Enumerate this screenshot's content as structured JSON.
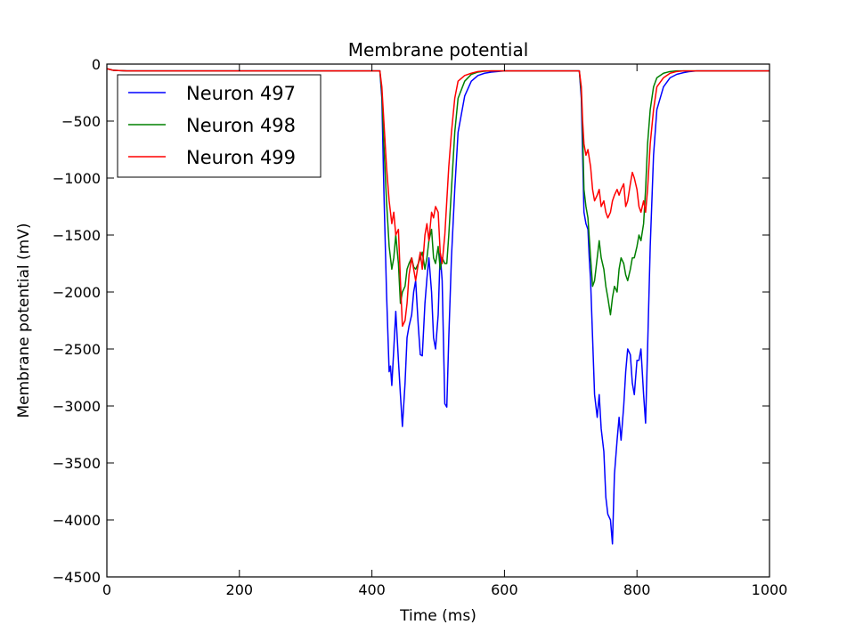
{
  "chart_data": {
    "type": "line",
    "title": "Membrane potential",
    "xlabel": "Time (ms)",
    "ylabel": "Membrane potential (mV)",
    "xlim": [
      0,
      1000
    ],
    "ylim": [
      -4500,
      0
    ],
    "xticks": [
      0,
      200,
      400,
      600,
      800,
      1000
    ],
    "yticks": [
      0,
      -500,
      -1000,
      -1500,
      -2000,
      -2500,
      -3000,
      -3500,
      -4000,
      -4500
    ],
    "xtick_labels": [
      "0",
      "200",
      "400",
      "600",
      "800",
      "1000"
    ],
    "ytick_labels": [
      "0",
      "−500",
      "−1000",
      "−1500",
      "−2000",
      "−2500",
      "−3000",
      "−3500",
      "−4000",
      "−4500"
    ],
    "grid": false,
    "legend_position": "top-left",
    "series": [
      {
        "name": "Neuron 497",
        "color": "#0000ff",
        "x": [
          0,
          10,
          30,
          412,
          415,
          418,
          422,
          426,
          428,
          430,
          433,
          436,
          440,
          443,
          446,
          450,
          453,
          456,
          460,
          463,
          466,
          470,
          473,
          476,
          480,
          483,
          486,
          490,
          493,
          496,
          500,
          503,
          506,
          510,
          513,
          516,
          520,
          525,
          530,
          540,
          550,
          560,
          570,
          580,
          600,
          700,
          713,
          716,
          718,
          720,
          723,
          726,
          728,
          730,
          733,
          736,
          740,
          743,
          746,
          750,
          753,
          756,
          760,
          763,
          766,
          770,
          773,
          776,
          780,
          783,
          786,
          790,
          793,
          796,
          800,
          803,
          806,
          810,
          813,
          816,
          820,
          825,
          830,
          840,
          850,
          860,
          870,
          880,
          890,
          1000
        ],
        "y": [
          -40,
          -55,
          -60,
          -60,
          -300,
          -1100,
          -2000,
          -2700,
          -2650,
          -2820,
          -2500,
          -2170,
          -2600,
          -2900,
          -3180,
          -2800,
          -2400,
          -2300,
          -2200,
          -2000,
          -1900,
          -2300,
          -2550,
          -2560,
          -2100,
          -1880,
          -1700,
          -2000,
          -2400,
          -2500,
          -2200,
          -1660,
          -1900,
          -2980,
          -3010,
          -2400,
          -1700,
          -1100,
          -600,
          -280,
          -150,
          -100,
          -80,
          -70,
          -60,
          -60,
          -60,
          -300,
          -800,
          -1300,
          -1400,
          -1450,
          -1700,
          -1900,
          -2400,
          -2900,
          -3100,
          -2900,
          -3200,
          -3400,
          -3800,
          -3950,
          -4000,
          -4210,
          -3600,
          -3300,
          -3100,
          -3300,
          -3000,
          -2700,
          -2500,
          -2550,
          -2800,
          -2900,
          -2600,
          -2600,
          -2500,
          -2900,
          -3150,
          -2500,
          -1600,
          -800,
          -400,
          -200,
          -120,
          -90,
          -75,
          -65,
          -60,
          -60
        ]
      },
      {
        "name": "Neuron 498",
        "color": "#008000",
        "x": [
          0,
          10,
          30,
          412,
          415,
          418,
          422,
          426,
          430,
          433,
          436,
          440,
          443,
          446,
          450,
          453,
          456,
          460,
          463,
          466,
          470,
          473,
          476,
          480,
          483,
          486,
          490,
          493,
          496,
          500,
          503,
          506,
          510,
          513,
          516,
          520,
          525,
          530,
          540,
          550,
          560,
          570,
          580,
          600,
          700,
          713,
          716,
          718,
          720,
          723,
          726,
          730,
          733,
          736,
          740,
          743,
          746,
          750,
          753,
          756,
          760,
          763,
          766,
          770,
          773,
          776,
          780,
          783,
          786,
          790,
          793,
          796,
          800,
          803,
          806,
          810,
          813,
          816,
          820,
          825,
          830,
          840,
          850,
          860,
          870,
          880,
          890,
          1000
        ],
        "y": [
          -40,
          -55,
          -60,
          -60,
          -250,
          -700,
          -1200,
          -1600,
          -1800,
          -1700,
          -1500,
          -1750,
          -2100,
          -2000,
          -1950,
          -1800,
          -1750,
          -1700,
          -1780,
          -1800,
          -1750,
          -1700,
          -1650,
          -1800,
          -1700,
          -1550,
          -1450,
          -1700,
          -1750,
          -1600,
          -1800,
          -1700,
          -1750,
          -1750,
          -1500,
          -1100,
          -600,
          -300,
          -150,
          -90,
          -70,
          -62,
          -60,
          -60,
          -60,
          -60,
          -250,
          -600,
          -1100,
          -1250,
          -1350,
          -1700,
          -1950,
          -1900,
          -1700,
          -1550,
          -1700,
          -1800,
          -1950,
          -2050,
          -2200,
          -2050,
          -1950,
          -2000,
          -1800,
          -1700,
          -1750,
          -1850,
          -1900,
          -1800,
          -1700,
          -1700,
          -1600,
          -1500,
          -1550,
          -1400,
          -1100,
          -700,
          -400,
          -200,
          -120,
          -80,
          -65,
          -60,
          -60,
          -60,
          -60,
          -60
        ]
      },
      {
        "name": "Neuron 499",
        "color": "#ff0000",
        "x": [
          0,
          10,
          30,
          412,
          415,
          418,
          422,
          426,
          430,
          433,
          436,
          440,
          443,
          446,
          450,
          453,
          456,
          460,
          463,
          466,
          470,
          473,
          476,
          480,
          483,
          486,
          490,
          493,
          496,
          500,
          503,
          506,
          510,
          513,
          516,
          520,
          525,
          530,
          540,
          550,
          560,
          570,
          580,
          600,
          700,
          713,
          716,
          718,
          720,
          723,
          726,
          730,
          733,
          736,
          740,
          743,
          746,
          750,
          753,
          756,
          760,
          763,
          766,
          770,
          773,
          776,
          780,
          783,
          786,
          790,
          793,
          796,
          800,
          803,
          806,
          810,
          813,
          816,
          820,
          825,
          830,
          840,
          850,
          860,
          870,
          880,
          890,
          1000
        ],
        "y": [
          -40,
          -55,
          -60,
          -60,
          -200,
          -500,
          -900,
          -1200,
          -1400,
          -1300,
          -1500,
          -1450,
          -1900,
          -2300,
          -2250,
          -2100,
          -1850,
          -1700,
          -1800,
          -1900,
          -1750,
          -1650,
          -1800,
          -1500,
          -1400,
          -1550,
          -1300,
          -1350,
          -1250,
          -1300,
          -1650,
          -1750,
          -1500,
          -1200,
          -900,
          -600,
          -300,
          -150,
          -100,
          -80,
          -65,
          -60,
          -60,
          -60,
          -60,
          -60,
          -200,
          -500,
          -700,
          -800,
          -750,
          -900,
          -1100,
          -1200,
          -1150,
          -1100,
          -1250,
          -1200,
          -1300,
          -1350,
          -1300,
          -1200,
          -1150,
          -1100,
          -1150,
          -1100,
          -1050,
          -1250,
          -1200,
          -1050,
          -950,
          -1000,
          -1100,
          -1250,
          -1300,
          -1200,
          -1300,
          -1100,
          -700,
          -400,
          -200,
          -120,
          -80,
          -65,
          -60,
          -60,
          -60,
          -60
        ]
      }
    ]
  }
}
